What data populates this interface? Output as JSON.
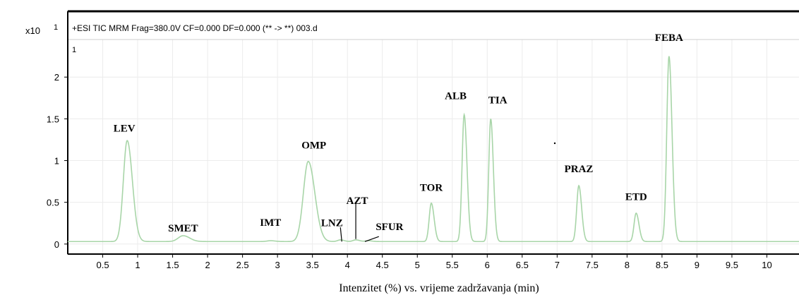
{
  "chart_data": {
    "type": "line",
    "title": "+ESI TIC MRM Frag=380.0V CF=0.000 DF=0.000 (** -> **) 003.d",
    "y_multiplier": "x10",
    "y_exponent": "1",
    "panel_index": "1",
    "xlabel": "Intenzitet (%) vs. vrijeme zadržavanja (min)",
    "ylabel": "",
    "xlim": [
      0.0,
      10.5
    ],
    "ylim": [
      -0.12,
      2.45
    ],
    "x_ticks": [
      0.5,
      1,
      1.5,
      2,
      2.5,
      3,
      3.5,
      4,
      4.5,
      5,
      5.5,
      6,
      6.5,
      7,
      7.5,
      8,
      8.5,
      9,
      9.5,
      10
    ],
    "x_tick_labels": [
      "0.5",
      "1",
      "1.5",
      "2",
      "2.5",
      "3",
      "3.5",
      "4",
      "4.5",
      "5",
      "5.5",
      "6",
      "6.5",
      "7",
      "7.5",
      "8",
      "8.5",
      "9",
      "9.5",
      "10"
    ],
    "y_ticks": [
      0,
      0.5,
      1,
      1.5,
      2
    ],
    "y_tick_labels": [
      "0",
      "0.5",
      "1",
      "1.5",
      "2"
    ],
    "baseline": 0.03,
    "line_color": "#a8d5a8",
    "grid": true,
    "peaks": [
      {
        "label": "LEV",
        "rt": 0.85,
        "height": 1.24
      },
      {
        "label": "SMET",
        "rt": 1.65,
        "height": 0.1
      },
      {
        "label": "IMT",
        "rt": 2.9,
        "height": 0.04
      },
      {
        "label": "OMP",
        "rt": 3.44,
        "height": 0.99
      },
      {
        "label": "LNZ",
        "rt": 3.9,
        "height": 0.05
      },
      {
        "label": "AZT",
        "rt": 4.12,
        "height": 0.05
      },
      {
        "label": "SFUR",
        "rt": 4.3,
        "height": 0.04
      },
      {
        "label": "TOR",
        "rt": 5.2,
        "height": 0.49
      },
      {
        "label": "ALB",
        "rt": 5.67,
        "height": 1.55
      },
      {
        "label": "TIA",
        "rt": 6.05,
        "height": 1.5
      },
      {
        "label": "PRAZ",
        "rt": 7.31,
        "height": 0.7
      },
      {
        "label": "ETD",
        "rt": 8.13,
        "height": 0.37
      },
      {
        "label": "FEBA",
        "rt": 8.6,
        "height": 2.25
      }
    ]
  }
}
